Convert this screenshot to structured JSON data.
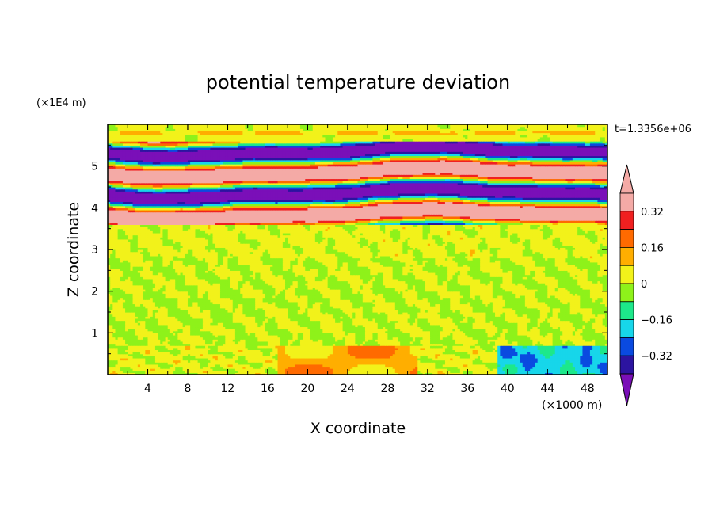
{
  "chart_data": {
    "type": "heatmap",
    "title": "potential temperature deviation",
    "xlabel": "X coordinate",
    "ylabel": "Z coordinate",
    "x_unit": "(×1000 m)",
    "y_unit": "(×1E4 m)",
    "time_label": "t=1.3356e+06",
    "xlim": [
      0,
      50
    ],
    "ylim": [
      0,
      6
    ],
    "x_ticks": [
      4,
      8,
      12,
      16,
      20,
      24,
      28,
      32,
      36,
      40,
      44,
      48
    ],
    "y_ticks": [
      1,
      2,
      3,
      4,
      5
    ],
    "colorbar": {
      "levels": [
        -0.4,
        -0.32,
        -0.24,
        -0.16,
        -0.08,
        0,
        0.08,
        0.16,
        0.24,
        0.32,
        0.4
      ],
      "colors": [
        "#7a0fb8",
        "#2c14a0",
        "#0a4ae0",
        "#17d6ea",
        "#1de88a",
        "#8ef21a",
        "#f2f21a",
        "#ffae00",
        "#ff6a00",
        "#f02020",
        "#f4aaa6",
        "#f4aaa6"
      ],
      "tick_labels": [
        "0.32",
        "0.16",
        "0",
        "−0.16",
        "−0.32"
      ],
      "tick_values": [
        0.32,
        0.16,
        0,
        -0.16,
        -0.32
      ],
      "extend": "both"
    },
    "bands": [
      {
        "z": [
          5.6,
          6.0
        ],
        "value": "weak positive (~0.04)"
      },
      {
        "z": [
          3.6,
          5.6
        ],
        "value": "strong alternating layers (±0.4)"
      },
      {
        "z": [
          0.7,
          3.6
        ],
        "value": "near zero (−0.05 to 0.05)"
      },
      {
        "z": [
          0.0,
          0.7
        ],
        "value": "mixed; positive near x=18–30, negative near x=40–50"
      }
    ]
  }
}
